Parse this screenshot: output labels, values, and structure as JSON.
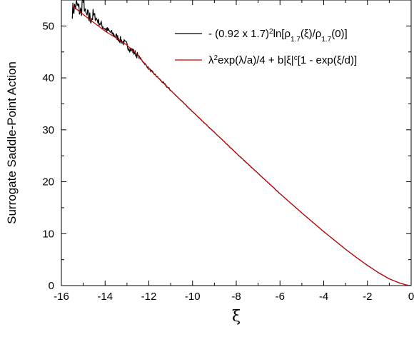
{
  "chart_data": {
    "type": "line",
    "xlabel": "ξ",
    "ylabel": "Surrogate Saddle-Point Action",
    "xlim": [
      -16,
      0
    ],
    "ylim": [
      0,
      55
    ],
    "x_ticks": [
      -16,
      -14,
      -12,
      -10,
      -8,
      -6,
      -4,
      -2,
      0
    ],
    "x_tick_labels": [
      "-16",
      "-14",
      "-12",
      "-10",
      "-8",
      "-6",
      "-4",
      "-2",
      "0"
    ],
    "y_ticks": [
      0,
      10,
      20,
      30,
      40,
      50
    ],
    "y_tick_labels": [
      "0",
      "10",
      "20",
      "30",
      "40",
      "50"
    ],
    "grid": false,
    "legend_position": "top-right",
    "legend": [
      {
        "color": "#000000",
        "parts": [
          {
            "t": "- (0.92 x 1.7)"
          },
          {
            "t": "2",
            "sup": true
          },
          {
            "t": "ln[ρ"
          },
          {
            "t": "1.7",
            "sub": true
          },
          {
            "t": "(ξ)/ρ"
          },
          {
            "t": "1.7",
            "sub": true
          },
          {
            "t": "(0)]"
          }
        ]
      },
      {
        "color": "#cc0000",
        "parts": [
          {
            "t": "λ"
          },
          {
            "t": "2",
            "sup": true
          },
          {
            "t": "exp(λ/a)/4 + b|ξ|"
          },
          {
            "t": "c",
            "sup": true
          },
          {
            "t": "[1 - exp(ξ/d)]"
          }
        ]
      }
    ],
    "series": [
      {
        "style": "noisy",
        "color": "#000000",
        "x": [
          -15.5,
          -15.3,
          -15.1,
          -15.0,
          -14.9,
          -14.7,
          -14.5,
          -14.3,
          -14.0,
          -13.8,
          -13.5,
          -13.2,
          -13.0,
          -12.8,
          -12.5,
          -12.0,
          -11.0,
          -10.0,
          -9.0,
          -8.0,
          -7.0,
          -6.0,
          -5.0,
          -4.0,
          -3.0,
          -2.5,
          -2.0,
          -1.5,
          -1.0,
          -0.5,
          -0.2,
          0.0
        ],
        "y": [
          53.0,
          54.0,
          52.5,
          56.0,
          52.0,
          51.5,
          52.0,
          50.8,
          49.5,
          48.9,
          48.0,
          47.0,
          46.3,
          45.4,
          44.3,
          41.8,
          37.6,
          33.5,
          29.5,
          25.5,
          21.6,
          17.7,
          14.0,
          10.4,
          7.0,
          5.4,
          3.9,
          2.5,
          1.3,
          0.45,
          0.1,
          0.0
        ]
      },
      {
        "style": "smooth",
        "color": "#cc0000",
        "x": [
          -15.5,
          -15.0,
          -14.5,
          -14.0,
          -13.5,
          -13.0,
          -12.5,
          -12.0,
          -11.0,
          -10.0,
          -9.0,
          -8.0,
          -7.0,
          -6.0,
          -5.0,
          -4.0,
          -3.0,
          -2.5,
          -2.0,
          -1.5,
          -1.0,
          -0.5,
          -0.2,
          0.0
        ],
        "y": [
          53.9,
          52.2,
          50.6,
          49.0,
          47.7,
          46.3,
          44.3,
          41.8,
          37.6,
          33.5,
          29.5,
          25.5,
          21.6,
          17.7,
          14.0,
          10.4,
          7.0,
          5.4,
          3.9,
          2.5,
          1.3,
          0.45,
          0.1,
          0.0
        ]
      }
    ]
  }
}
